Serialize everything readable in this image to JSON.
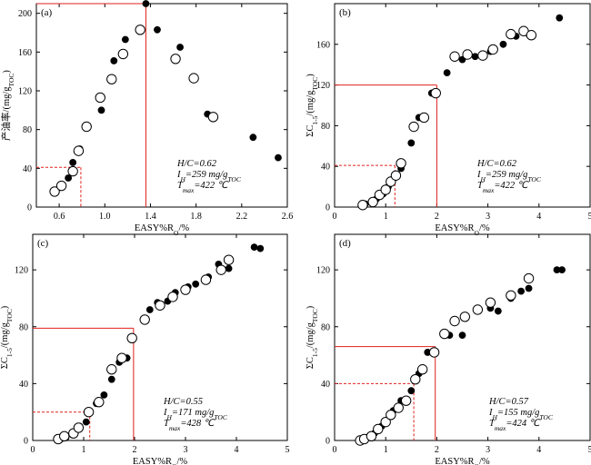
{
  "figure": {
    "marker_colors": {
      "filled": "#000000",
      "open": "#ffffff",
      "open_stroke": "#000000"
    },
    "guide_colors": {
      "solid": "#e0201c",
      "dashed": "#e0201c"
    }
  },
  "chart_data": [
    {
      "type": "scatter",
      "panel_label": "(a)",
      "xlabel": "EASY%R_O/%",
      "ylabel": "产油率/(mg/g_TOC)",
      "xlim": [
        0.4,
        2.6
      ],
      "ylim": [
        0,
        210
      ],
      "xticks": [
        0.6,
        1.0,
        1.4,
        1.8,
        2.2,
        2.6
      ],
      "xtick_labels": [
        "0.6",
        "1.0",
        "1.4",
        "1.8",
        "2.2",
        "2.6"
      ],
      "yticks": [
        0,
        40,
        80,
        120,
        160,
        200
      ],
      "ytick_labels": [
        "0",
        "40",
        "80",
        "120",
        "160",
        "200"
      ],
      "annotation": {
        "hc": "H/C=0.62",
        "ih": "I_H=259 mg/g_TOC",
        "tmax": "T_max=422 ℃"
      },
      "series": [
        {
          "marker": "filled",
          "x": [
            0.68,
            0.72,
            0.78,
            0.97,
            1.08,
            1.18,
            1.36,
            1.46,
            1.66,
            1.9,
            2.3,
            2.52
          ],
          "y": [
            30,
            46,
            60,
            100,
            151,
            173,
            210,
            183,
            165,
            96,
            72,
            51
          ]
        },
        {
          "marker": "open",
          "x": [
            0.56,
            0.62,
            0.72,
            0.77,
            0.84,
            0.96,
            1.06,
            1.16,
            1.31,
            1.62,
            1.78,
            1.95
          ],
          "y": [
            16,
            22,
            37,
            58,
            83,
            113,
            132,
            158,
            183,
            153,
            133,
            93
          ]
        }
      ],
      "guides": [
        {
          "style": "solid",
          "x": 1.36,
          "y": 210
        },
        {
          "style": "dashed",
          "x": 0.79,
          "y": 41
        }
      ]
    },
    {
      "type": "scatter",
      "panel_label": "(b)",
      "xlabel": "EASY%R_O/%",
      "ylabel": "ΣC_1-5/(mg/g_TOC)",
      "xlim": [
        0,
        5
      ],
      "ylim": [
        0,
        200
      ],
      "xticks": [
        0,
        1,
        2,
        3,
        4,
        5
      ],
      "xtick_labels": [
        "0",
        "1",
        "2",
        "3",
        "4",
        "5"
      ],
      "yticks": [
        0,
        40,
        80,
        120,
        160
      ],
      "ytick_labels": [
        "0",
        "40",
        "80",
        "120",
        "160"
      ],
      "annotation": {
        "hc": "H/C=0.62",
        "ih": "I_H=259 mg/g_TOC",
        "tmax": "T_max=422 ℃"
      },
      "series": [
        {
          "marker": "filled",
          "x": [
            0.6,
            0.72,
            0.82,
            0.95,
            1.05,
            1.15,
            1.3,
            1.5,
            1.65,
            1.9,
            2.2,
            2.5,
            2.75,
            3.05,
            3.3,
            3.55,
            3.8,
            4.4
          ],
          "y": [
            3,
            5,
            8,
            13,
            20,
            28,
            38,
            63,
            88,
            112,
            132,
            145,
            148,
            153,
            160,
            168,
            170,
            186
          ]
        },
        {
          "marker": "open",
          "x": [
            0.55,
            0.75,
            0.88,
            1.0,
            1.1,
            1.2,
            1.3,
            1.55,
            1.75,
            1.98,
            2.35,
            2.6,
            2.9,
            3.1,
            3.45,
            3.7,
            3.85
          ],
          "y": [
            2,
            5,
            12,
            17,
            25,
            31,
            43,
            79,
            88,
            112,
            148,
            150,
            149,
            155,
            170,
            173,
            169
          ]
        }
      ],
      "guides": [
        {
          "style": "solid",
          "x": 2.0,
          "y": 120
        },
        {
          "style": "dashed",
          "x": 1.18,
          "y": 41
        }
      ]
    },
    {
      "type": "scatter",
      "panel_label": "(c)",
      "xlabel": "EASY%R_O/%",
      "ylabel": "ΣC_1-5/(mg/g_TOC)",
      "xlim": [
        0,
        5
      ],
      "ylim": [
        0,
        145
      ],
      "xticks": [
        0,
        1,
        2,
        3,
        4,
        5
      ],
      "xtick_labels": [
        "0",
        "1",
        "2",
        "3",
        "4",
        "5"
      ],
      "yticks": [
        0,
        40,
        80,
        120
      ],
      "ytick_labels": [
        "0",
        "40",
        "80",
        "120"
      ],
      "annotation": {
        "hc": "H/C=0.55",
        "ih": "I_H=171 mg/g_TOC",
        "tmax": "T_max=428 ℃"
      },
      "series": [
        {
          "marker": "filled",
          "x": [
            0.55,
            0.65,
            0.78,
            0.92,
            1.05,
            1.25,
            1.4,
            1.55,
            1.7,
            1.85,
            2.3,
            2.45,
            2.65,
            2.8,
            3.05,
            3.2,
            3.45,
            3.65,
            3.85,
            4.35,
            4.47
          ],
          "y": [
            1,
            2,
            4,
            10,
            13,
            26,
            32,
            43,
            55,
            58,
            92,
            97,
            98,
            104,
            108,
            110,
            115,
            124,
            121,
            136,
            135
          ]
        },
        {
          "marker": "open",
          "x": [
            0.5,
            0.62,
            0.8,
            0.9,
            1.1,
            1.3,
            1.55,
            1.75,
            1.95,
            2.2,
            2.5,
            2.75,
            3.0,
            3.4,
            3.7,
            3.85
          ],
          "y": [
            1,
            3,
            5,
            9,
            20,
            27,
            50,
            58,
            72,
            85,
            95,
            101,
            106,
            113,
            120,
            127
          ]
        }
      ],
      "guides": [
        {
          "style": "solid",
          "x": 1.98,
          "y": 79
        },
        {
          "style": "dashed",
          "x": 1.12,
          "y": 20
        }
      ]
    },
    {
      "type": "scatter",
      "panel_label": "(d)",
      "xlabel": "EASY%R_O/%",
      "ylabel": "ΣC_1-5/(mg/g_TOC)",
      "xlim": [
        0,
        5
      ],
      "ylim": [
        0,
        145
      ],
      "xticks": [
        0,
        1,
        2,
        3,
        4,
        5
      ],
      "xtick_labels": [
        "0",
        "1",
        "2",
        "3",
        "4",
        "5"
      ],
      "yticks": [
        0,
        40,
        80,
        120
      ],
      "ytick_labels": [
        "0",
        "40",
        "80",
        "120"
      ],
      "annotation": {
        "hc": "H/C=0.57",
        "ih": "I_H=155 mg/g_TOC",
        "tmax": "T_max=424 ℃"
      },
      "series": [
        {
          "marker": "filled",
          "x": [
            0.55,
            0.68,
            0.78,
            0.92,
            1.02,
            1.15,
            1.3,
            1.5,
            1.65,
            1.82,
            2.25,
            2.5,
            2.8,
            3.05,
            3.2,
            3.45,
            3.65,
            3.8,
            4.35,
            4.45
          ],
          "y": [
            1,
            3,
            5,
            10,
            14,
            21,
            28,
            35,
            47,
            62,
            74,
            74,
            93,
            93,
            91,
            100,
            105,
            107,
            120,
            120
          ]
        },
        {
          "marker": "open",
          "x": [
            0.5,
            0.58,
            0.72,
            0.85,
            1.0,
            1.1,
            1.25,
            1.4,
            1.58,
            1.72,
            1.95,
            2.15,
            2.35,
            2.55,
            2.8,
            3.05,
            3.45,
            3.8
          ],
          "y": [
            0,
            1,
            3,
            8,
            13,
            18,
            23,
            28,
            43,
            50,
            62,
            75,
            84,
            87,
            92,
            97,
            102,
            114
          ]
        }
      ],
      "guides": [
        {
          "style": "solid",
          "x": 1.97,
          "y": 66
        },
        {
          "style": "dashed",
          "x": 1.55,
          "y": 40
        }
      ]
    }
  ]
}
